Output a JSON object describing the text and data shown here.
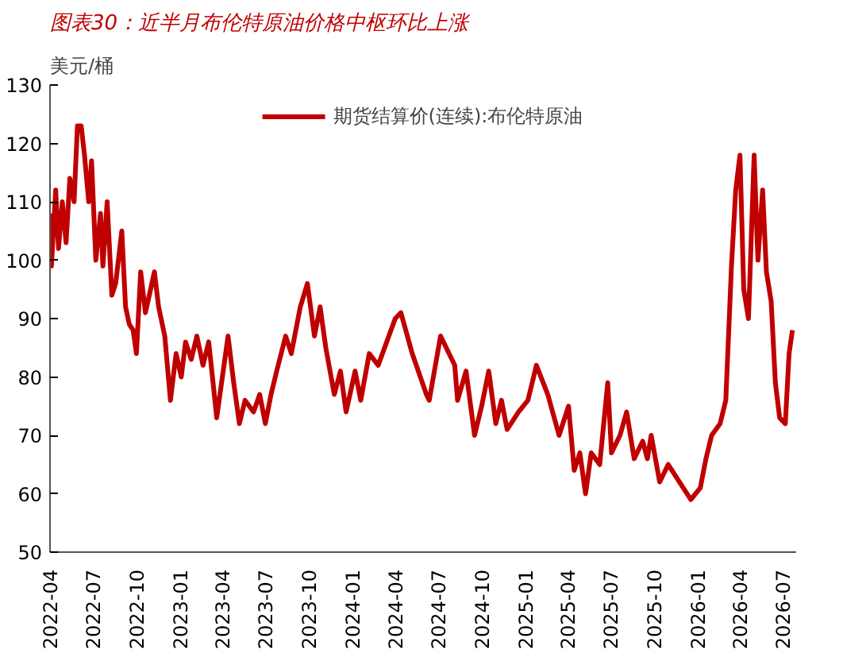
{
  "chart_data": {
    "type": "line",
    "title": "图表30：近半月布伦特原油价格中枢环比上涨",
    "ylabel": "美元/桶",
    "x": [
      "2022-04-01",
      "2022-04-04",
      "2022-04-13",
      "2022-04-19",
      "2022-04-27",
      "2022-05-05",
      "2022-05-13",
      "2022-05-22",
      "2022-05-29",
      "2022-06-06",
      "2022-06-13",
      "2022-06-22",
      "2022-06-28",
      "2022-07-07",
      "2022-07-17",
      "2022-07-22",
      "2022-07-31",
      "2022-08-10",
      "2022-08-18",
      "2022-08-31",
      "2022-09-08",
      "2022-09-16",
      "2022-09-24",
      "2022-10-01",
      "2022-10-10",
      "2022-10-20",
      "2022-10-31",
      "2022-11-08",
      "2022-11-17",
      "2022-11-30",
      "2022-12-12",
      "2022-12-24",
      "2023-01-04",
      "2023-01-13",
      "2023-01-25",
      "2023-02-06",
      "2023-02-19",
      "2023-03-03",
      "2023-03-11",
      "2023-03-20",
      "2023-04-01",
      "2023-04-13",
      "2023-04-25",
      "2023-05-07",
      "2023-05-19",
      "2023-06-06",
      "2023-06-19",
      "2023-07-01",
      "2023-07-13",
      "2023-07-25",
      "2023-08-13",
      "2023-08-25",
      "2023-09-13",
      "2023-09-28",
      "2023-10-13",
      "2023-10-25",
      "2023-11-06",
      "2023-11-24",
      "2023-12-07",
      "2023-12-19",
      "2024-01-07",
      "2024-01-19",
      "2024-02-06",
      "2024-02-25",
      "2024-03-14",
      "2024-04-01",
      "2024-04-13",
      "2024-05-07",
      "2024-06-06",
      "2024-06-12",
      "2024-07-06",
      "2024-08-05",
      "2024-08-11",
      "2024-08-29",
      "2024-09-16",
      "2024-10-01",
      "2024-10-16",
      "2024-10-31",
      "2024-11-12",
      "2024-11-24",
      "2024-12-18",
      "2025-01-07",
      "2025-01-25",
      "2025-02-18",
      "2025-03-14",
      "2025-04-03",
      "2025-04-15",
      "2025-04-27",
      "2025-05-09",
      "2025-05-21",
      "2025-06-08",
      "2025-06-25",
      "2025-07-03",
      "2025-07-21",
      "2025-08-04",
      "2025-08-20",
      "2025-09-07",
      "2025-09-17",
      "2025-09-25",
      "2025-10-13",
      "2025-10-31",
      "2025-11-24",
      "2025-12-18",
      "2026-01-07",
      "2026-01-19",
      "2026-01-31",
      "2026-02-18",
      "2026-03-02",
      "2026-03-14",
      "2026-03-23",
      "2026-04-01",
      "2026-04-09",
      "2026-04-19",
      "2026-05-01",
      "2026-05-09",
      "2026-05-19",
      "2026-05-27",
      "2026-06-06",
      "2026-06-15",
      "2026-06-24",
      "2026-07-06",
      "2026-07-14",
      "2026-07-21"
    ],
    "series": [
      {
        "name": "期货结算价(连续):布伦特原油",
        "color": "#c00000",
        "values": [
          108,
          99,
          112,
          102,
          110,
          103,
          114,
          110,
          123,
          123,
          118,
          110,
          117,
          100,
          108,
          99,
          110,
          94,
          96,
          105,
          92,
          89,
          88,
          84,
          98,
          91,
          95,
          98,
          92,
          87,
          76,
          84,
          80,
          86,
          83,
          87,
          82,
          86,
          80,
          73,
          80,
          87,
          79,
          72,
          76,
          74,
          77,
          72,
          77,
          81,
          87,
          84,
          92,
          96,
          87,
          92,
          85,
          77,
          81,
          74,
          81,
          76,
          84,
          82,
          86,
          90,
          91,
          84,
          77,
          76,
          87,
          82,
          76,
          81,
          70,
          75,
          81,
          72,
          76,
          71,
          74,
          76,
          82,
          77,
          70,
          75,
          64,
          67,
          60,
          67,
          65,
          79,
          67,
          70,
          74,
          66,
          69,
          66,
          70,
          62,
          65,
          62,
          59,
          61,
          66,
          70,
          72,
          76,
          99,
          112,
          118,
          95,
          90,
          118,
          100,
          112,
          98,
          93,
          79,
          73,
          72,
          84,
          88
        ]
      }
    ],
    "xlim": [
      "2022-04-01",
      "2026-07-29"
    ],
    "ylim": [
      50,
      130
    ],
    "xticks": [
      "2022-04",
      "2022-07",
      "2022-10",
      "2023-01",
      "2023-04",
      "2023-07",
      "2023-10",
      "2024-01",
      "2024-04",
      "2024-07",
      "2024-10",
      "2025-01",
      "2025-04",
      "2025-07",
      "2025-10",
      "2026-01",
      "2026-04",
      "2026-07"
    ],
    "yticks": [
      50,
      60,
      70,
      80,
      90,
      100,
      110,
      120,
      130
    ],
    "legend": "top",
    "grid": false
  }
}
